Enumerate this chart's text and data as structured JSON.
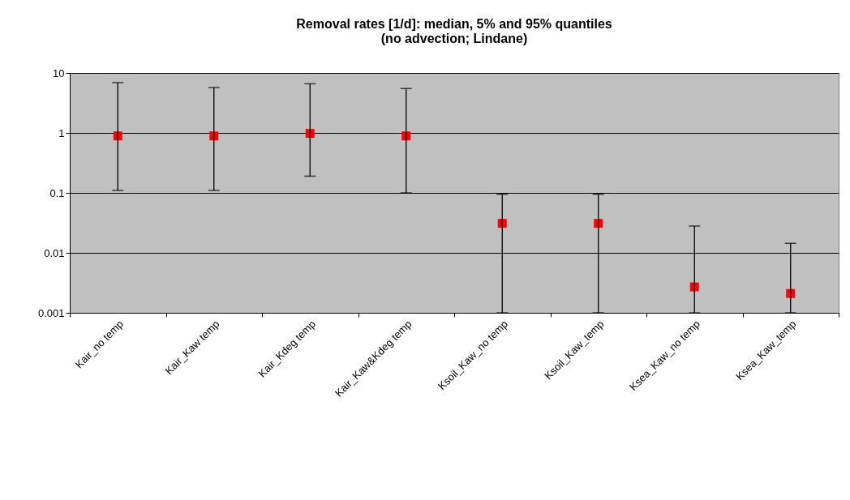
{
  "chart_data": {
    "type": "scatter",
    "title": [
      "Removal rates [1/d]: median, 5% and 95% quantiles",
      "(no advection; Lindane)"
    ],
    "categories": [
      "Kair_no temp",
      "Kair_Kaw temp",
      "Kair_Kdeg temp",
      "Kair_Kaw&Kdeg temp",
      "Ksoil_Kaw_no temp",
      "Ksoil_Kaw_temp",
      "Ksea_Kaw_no temp",
      "Ksea_Kaw_temp"
    ],
    "series": [
      {
        "color": "#ff0000",
        "values": [
          0.89,
          0.89,
          0.98,
          0.89,
          0.031,
          0.031,
          0.0027,
          0.0021
        ],
        "errors": [
          [
            0.11,
            6.9
          ],
          [
            0.11,
            5.7
          ],
          [
            0.19,
            6.6
          ],
          [
            0.1,
            5.5
          ],
          [
            0.001,
            0.095
          ],
          [
            0.001,
            0.095
          ],
          [
            0.001,
            0.028
          ],
          [
            0.001,
            0.0144
          ]
        ]
      }
    ],
    "log": "y",
    "ylim": [
      0.001,
      10
    ],
    "yticks": [
      0.001,
      0.01,
      0.1,
      1,
      10
    ],
    "grid": "y",
    "marker": "square"
  }
}
